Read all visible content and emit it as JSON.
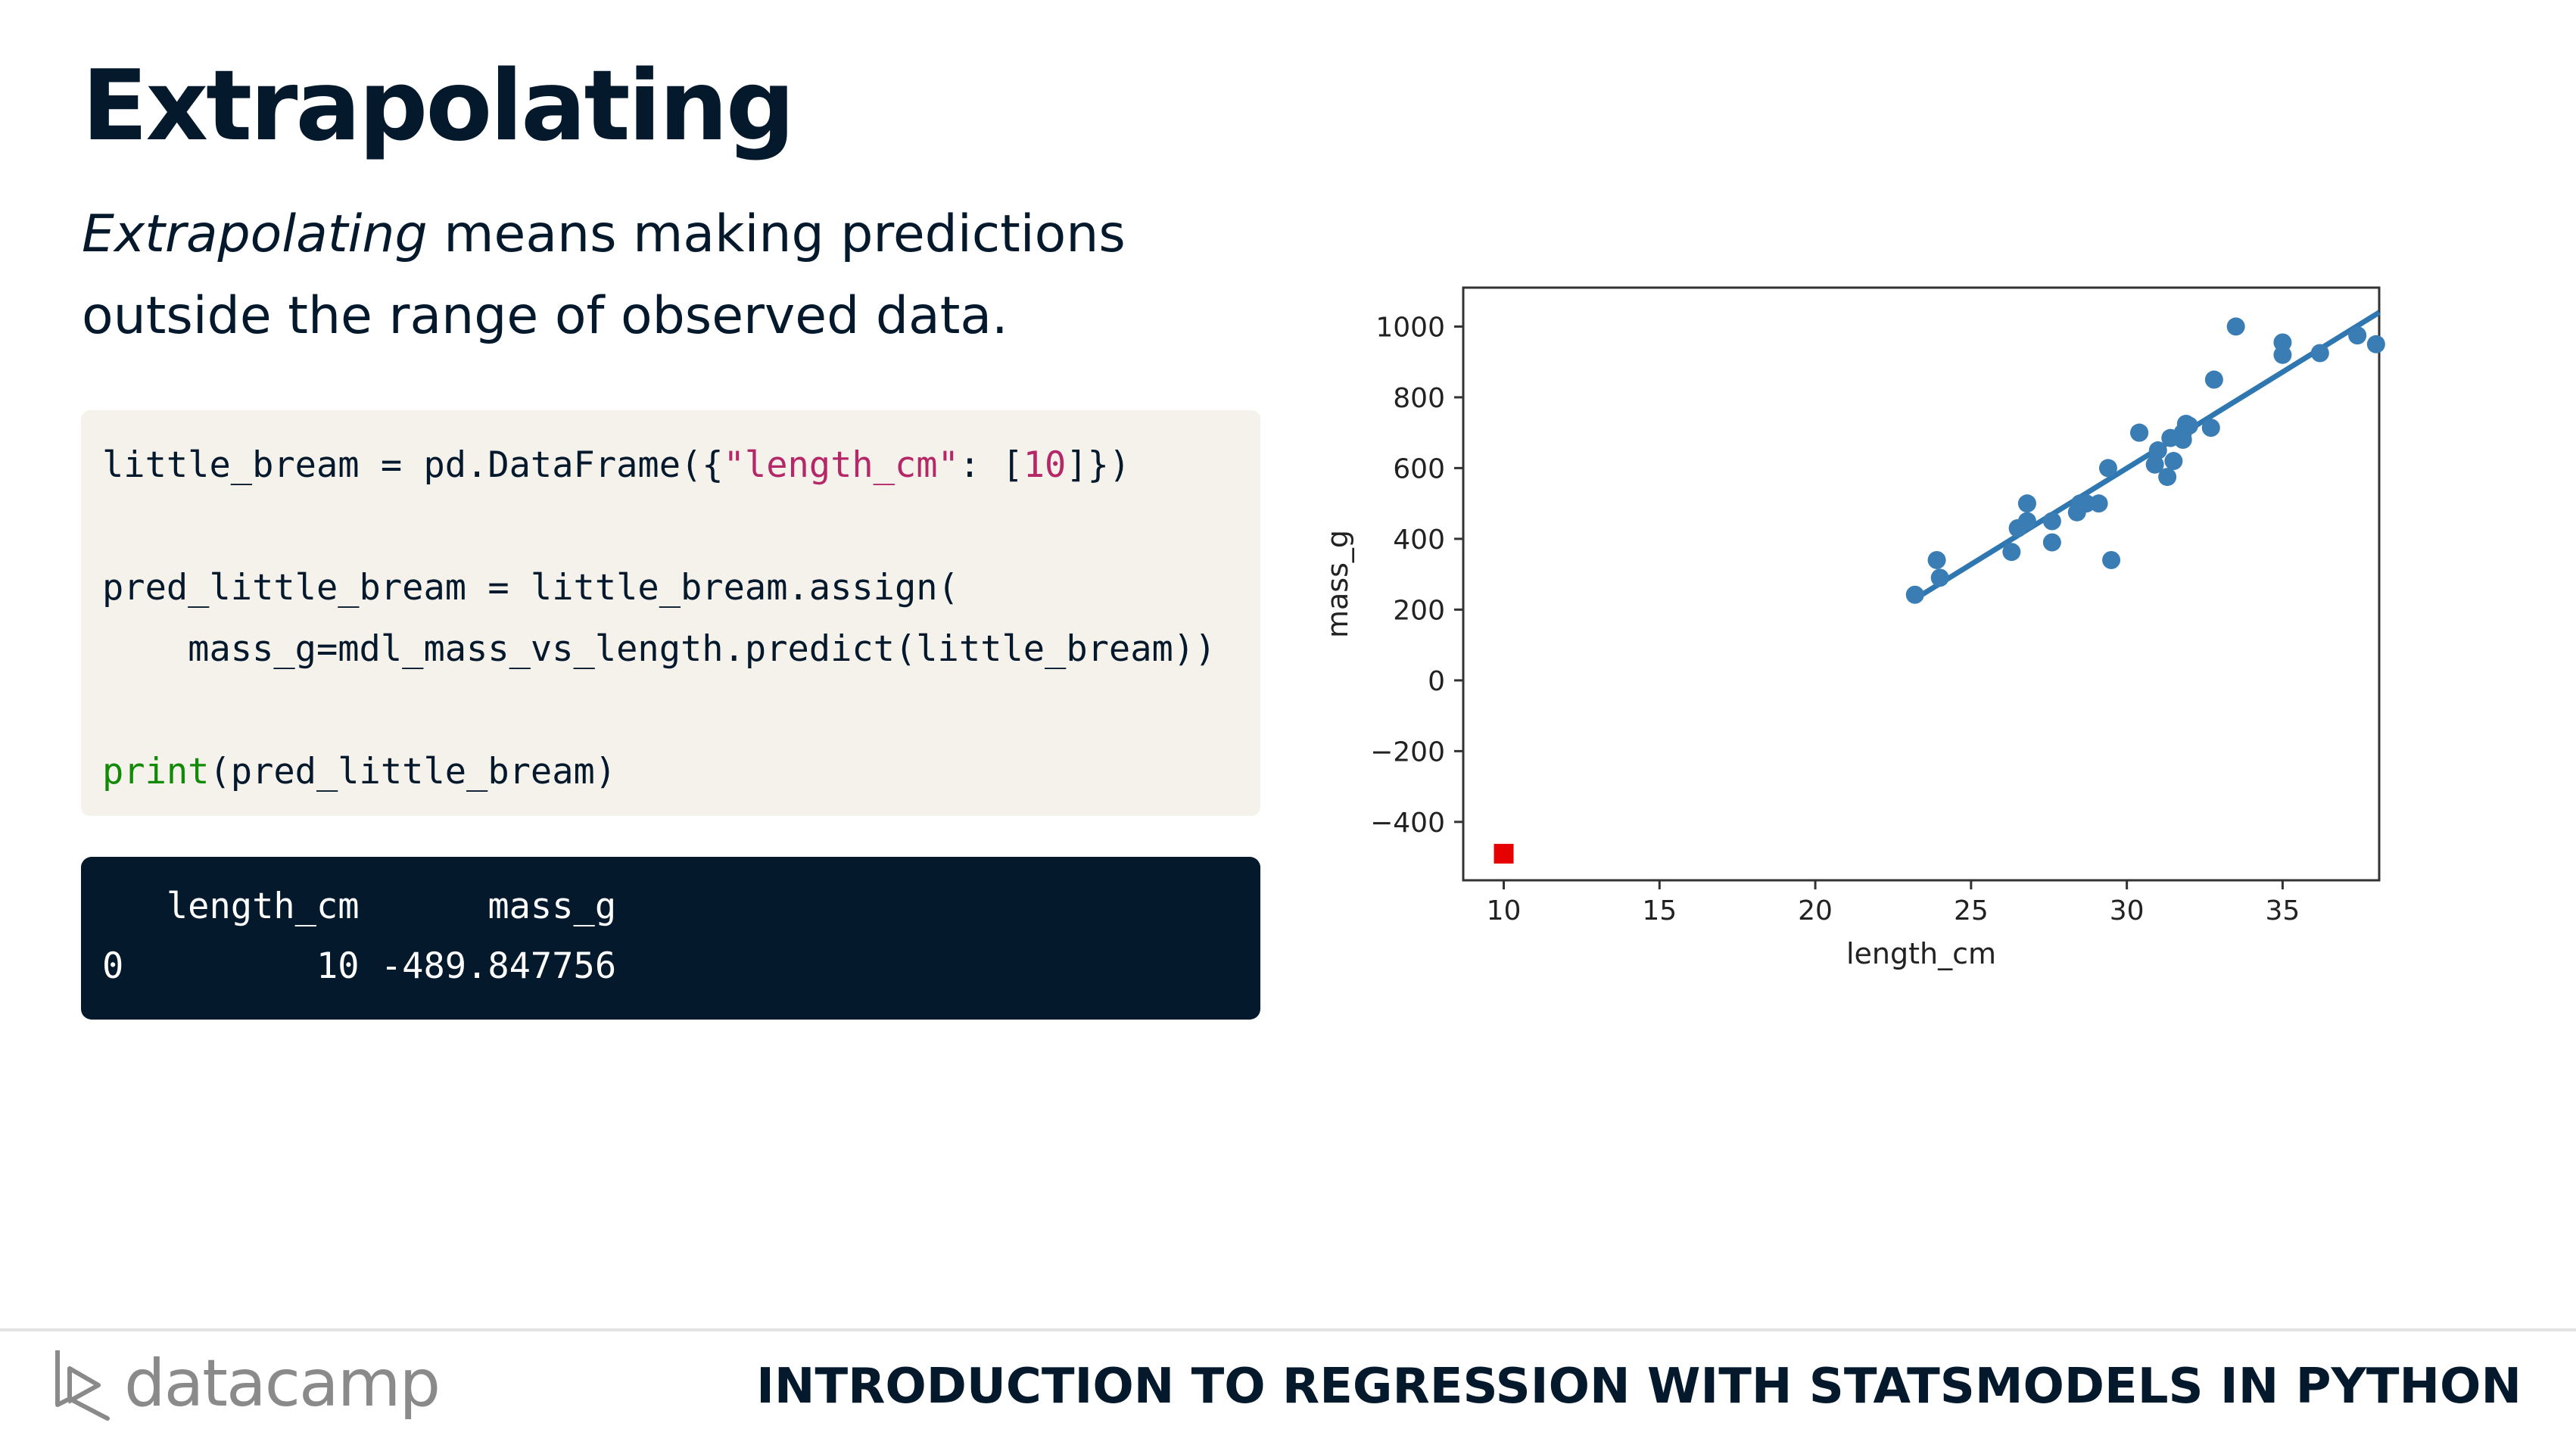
{
  "slide": {
    "title": "Extrapolating",
    "subtitle_em": "Extrapolating",
    "subtitle_rest1": " means making predictions",
    "subtitle_line2": "outside the range of observed data."
  },
  "code": {
    "line1_a": "little_bream = pd.DataFrame({",
    "line1_str": "\"length_cm\"",
    "line1_b": ": [",
    "line1_num": "10",
    "line1_c": "]})",
    "line2": "",
    "line3": "pred_little_bream = little_bream.assign(",
    "line4": "    mass_g=mdl_mass_vs_length.predict(little_bream))",
    "line5": "",
    "line6_fn": "print",
    "line6_rest": "(pred_little_bream)"
  },
  "output": {
    "header": "   length_cm      mass_g",
    "row0": "0         10 -489.847756"
  },
  "chart_data": {
    "type": "scatter",
    "xlabel": "length_cm",
    "ylabel": "mass_g",
    "xlim": [
      8.7,
      38.1
    ],
    "ylim": [
      -565,
      1110
    ],
    "xticks": [
      10,
      15,
      20,
      25,
      30,
      35
    ],
    "yticks": [
      1000,
      800,
      600,
      400,
      200,
      0,
      -200,
      -400
    ],
    "ytick_labels": [
      "1000",
      "800",
      "600",
      "400",
      "200",
      "0",
      "−200",
      "−400"
    ],
    "point_color": "#3a7db5",
    "line_color": "#2f77b0",
    "pred_color": "#e60000",
    "points": [
      [
        23.2,
        242
      ],
      [
        23.9,
        340
      ],
      [
        24.0,
        290
      ],
      [
        26.3,
        363
      ],
      [
        26.5,
        430
      ],
      [
        26.8,
        450
      ],
      [
        26.8,
        500
      ],
      [
        27.6,
        390
      ],
      [
        27.6,
        450
      ],
      [
        28.5,
        500
      ],
      [
        28.4,
        475
      ],
      [
        28.7,
        500
      ],
      [
        29.1,
        500
      ],
      [
        29.4,
        600
      ],
      [
        29.5,
        340
      ],
      [
        30.4,
        700
      ],
      [
        30.4,
        700
      ],
      [
        30.9,
        610
      ],
      [
        31.0,
        650
      ],
      [
        31.3,
        575
      ],
      [
        31.4,
        685
      ],
      [
        31.5,
        620
      ],
      [
        31.8,
        680
      ],
      [
        31.8,
        700
      ],
      [
        31.9,
        725
      ],
      [
        32.0,
        720
      ],
      [
        32.7,
        714
      ],
      [
        32.8,
        850
      ],
      [
        33.5,
        1000
      ],
      [
        35.0,
        920
      ],
      [
        35.0,
        955
      ],
      [
        36.2,
        925
      ],
      [
        37.4,
        975
      ],
      [
        38.0,
        950
      ]
    ],
    "fit_line": [
      [
        23.2,
        230
      ],
      [
        38.1,
        1040
      ]
    ],
    "prediction": [
      10,
      -489.847756
    ]
  },
  "footer": {
    "logo_text": "datacamp",
    "course_title": "INTRODUCTION TO REGRESSION WITH STATSMODELS IN PYTHON"
  },
  "colors": {
    "navy": "#05192d",
    "code_bg": "#f5f2ec",
    "string": "#b42868",
    "function": "#138a07"
  }
}
